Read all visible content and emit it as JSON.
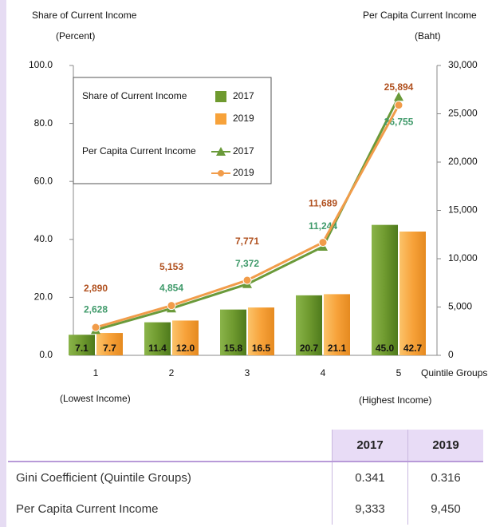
{
  "chart_data": {
    "type": "bar",
    "y_label": "Share of Current Income",
    "y_unit": "(Percent)",
    "y2_label": "Per Capita Current Income",
    "y2_unit": "(Baht)",
    "x_label": "Quintile Groups",
    "x_notes": [
      "(Lowest Income)",
      "(Highest Income)"
    ],
    "categories": [
      "1",
      "2",
      "3",
      "4",
      "5"
    ],
    "ylim": [
      0,
      100
    ],
    "yticks": [
      {
        "value": 0,
        "label": "0.0"
      },
      {
        "value": 20,
        "label": "20.0"
      },
      {
        "value": 40,
        "label": "40.0"
      },
      {
        "value": 60,
        "label": "60.0"
      },
      {
        "value": 80,
        "label": "80.0"
      },
      {
        "value": 100,
        "label": "100.0"
      }
    ],
    "y2lim": [
      0,
      30000
    ],
    "y2ticks": [
      0,
      {
        "value": 5000,
        "label": "5,000"
      },
      {
        "value": 10000,
        "label": "10,000"
      },
      {
        "value": 15000,
        "label": "15,000"
      },
      {
        "value": 20000,
        "label": "20,000"
      },
      {
        "value": 25000,
        "label": "25,000"
      },
      {
        "value": 30000,
        "label": "30,000"
      }
    ],
    "series": [
      {
        "name": "2017",
        "type": "bar",
        "color": "#6f9a2f",
        "values": [
          7.1,
          11.4,
          15.8,
          20.7,
          45.0
        ],
        "value_labels": [
          "7.1",
          "11.4",
          "15.8",
          "20.7",
          "45.0"
        ]
      },
      {
        "name": "2019",
        "type": "bar",
        "color": "#f7a23a",
        "values": [
          7.7,
          12.0,
          16.5,
          21.1,
          42.7
        ],
        "value_labels": [
          "7.7",
          "12.0",
          "16.5",
          "21.1",
          "42.7"
        ]
      },
      {
        "name": "2017",
        "type": "line",
        "axis": "y2",
        "marker": "triangle",
        "color": "#6a9a3a",
        "label_color": "#3f9a6a",
        "values": [
          2628,
          4854,
          7372,
          11244,
          26755
        ],
        "value_labels": [
          "2,628",
          "4,854",
          "7,372",
          "11,244",
          "26,755"
        ]
      },
      {
        "name": "2019",
        "type": "line",
        "axis": "y2",
        "marker": "circle",
        "color": "#f19c4a",
        "label_color": "#b0501e",
        "values": [
          2890,
          5153,
          7771,
          11689,
          25894
        ],
        "value_labels": [
          "2,890",
          "5,153",
          "7,771",
          "11,689",
          "25,894"
        ]
      }
    ]
  },
  "table": {
    "columns": [
      "2017",
      "2019"
    ],
    "rows": [
      [
        "Gini Coefficient (Quintile Groups)",
        "0.341",
        "0.316"
      ],
      [
        "Per Capita Current Income",
        "9,333",
        "9,450"
      ]
    ]
  }
}
